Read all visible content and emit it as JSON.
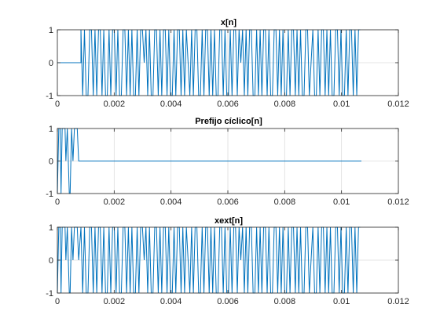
{
  "chart_data": [
    {
      "type": "line",
      "title": "x[n]",
      "xlabel": "",
      "ylabel": "",
      "xlim": [
        0,
        0.012
      ],
      "ylim": [
        -1,
        1
      ],
      "grid": true,
      "xticks": [
        "0",
        "0.002",
        "0.004",
        "0.006",
        "0.008",
        "0.01",
        "0.012"
      ],
      "xtick_values": [
        0,
        0.002,
        0.004,
        0.006,
        0.008,
        0.01,
        0.012
      ],
      "yticks": [
        "-1",
        "0",
        "1"
      ],
      "ytick_values": [
        -1,
        0,
        1
      ],
      "signal": {
        "zero_start": 0.0,
        "active_start": 0.00083,
        "active_end": 0.01066,
        "sample_step": 6.25e-05,
        "values": [
          1,
          -1,
          1,
          -1,
          -1,
          1,
          1,
          -1,
          1,
          -1,
          1,
          1,
          -1,
          1,
          -1,
          -1,
          1,
          -1,
          1,
          1,
          -1,
          1,
          -1,
          -1,
          1,
          1,
          -1,
          1,
          -1,
          1,
          -1,
          -1,
          1,
          -1,
          1,
          1,
          0,
          1,
          -1,
          1,
          -1,
          -1,
          1,
          1,
          -1,
          1,
          -1,
          1,
          1,
          -1,
          1,
          -1,
          -1,
          1,
          -1,
          1,
          1,
          -1,
          1,
          -1,
          1,
          0,
          -1,
          1,
          -1,
          1,
          1,
          -1,
          -1,
          1,
          -1,
          1,
          1,
          -1,
          1,
          -1,
          1,
          -1,
          -1,
          1,
          1,
          -1,
          1,
          -1,
          -1,
          1,
          -1,
          1,
          1,
          -1,
          1,
          0,
          1,
          -1,
          1,
          -1,
          1,
          1,
          -1,
          -1,
          1,
          -1,
          1,
          -1,
          1,
          1,
          -1,
          1,
          -1,
          -1,
          1,
          1,
          -1,
          1,
          -1,
          1,
          -1,
          -1,
          1,
          -1,
          1,
          1,
          -1,
          1,
          -1,
          1,
          -1,
          -1,
          1,
          1,
          -1,
          0,
          1,
          -1,
          -1,
          1,
          -1,
          1,
          1,
          -1,
          1,
          -1,
          1,
          -1,
          -1,
          1,
          1,
          -1,
          1,
          -1,
          -1,
          1,
          -1,
          1,
          1,
          -1,
          1,
          -1,
          1,
          1
        ]
      }
    },
    {
      "type": "line",
      "title": "Prefijo cíclico[n]",
      "xlabel": "",
      "ylabel": "",
      "xlim": [
        0,
        0.012
      ],
      "ylim": [
        -1,
        1
      ],
      "grid": true,
      "xticks": [
        "0",
        "0.002",
        "0.004",
        "0.006",
        "0.008",
        "0.01",
        "0.012"
      ],
      "xtick_values": [
        0,
        0.002,
        0.004,
        0.006,
        0.008,
        0.01,
        0.012
      ],
      "yticks": [
        "-1",
        "0",
        "1"
      ],
      "ytick_values": [
        -1,
        0,
        1
      ],
      "signal": {
        "points": [
          [
            0,
            -1
          ],
          [
            5e-05,
            1
          ],
          [
            0.0001,
            1
          ],
          [
            0.00013,
            -1
          ],
          [
            0.00017,
            1
          ],
          [
            0.00027,
            1
          ],
          [
            0.0003,
            0
          ],
          [
            0.00035,
            1
          ],
          [
            0.00042,
            -1
          ],
          [
            0.00045,
            -1
          ],
          [
            0.0005,
            1
          ],
          [
            0.00055,
            0
          ],
          [
            0.0006,
            1
          ],
          [
            0.0007,
            1
          ],
          [
            0.00075,
            0
          ],
          [
            0.0107,
            0
          ]
        ]
      }
    },
    {
      "type": "line",
      "title": "xext[n]",
      "xlabel": "",
      "ylabel": "",
      "xlim": [
        0,
        0.012
      ],
      "ylim": [
        -1,
        1
      ],
      "grid": true,
      "xticks": [
        "0",
        "0.002",
        "0.004",
        "0.006",
        "0.008",
        "0.01",
        "0.012"
      ],
      "xtick_values": [
        0,
        0.002,
        0.004,
        0.006,
        0.008,
        0.01,
        0.012
      ],
      "yticks": [
        "-1",
        "0",
        "1"
      ],
      "ytick_values": [
        -1,
        0,
        1
      ],
      "signal": {
        "prefix_points": [
          [
            0,
            -1
          ],
          [
            5e-05,
            1
          ],
          [
            0.0001,
            1
          ],
          [
            0.00013,
            -1
          ],
          [
            0.00017,
            1
          ],
          [
            0.00027,
            1
          ],
          [
            0.0003,
            0
          ],
          [
            0.00035,
            1
          ],
          [
            0.00042,
            -1
          ],
          [
            0.00045,
            -1
          ],
          [
            0.0005,
            1
          ],
          [
            0.00055,
            0
          ],
          [
            0.0006,
            1
          ],
          [
            0.0007,
            1
          ],
          [
            0.00075,
            0
          ]
        ],
        "active_start": 0.00083,
        "active_end": 0.01066,
        "sample_step": 6.25e-05,
        "values": [
          1,
          -1,
          1,
          -1,
          -1,
          1,
          1,
          -1,
          1,
          -1,
          1,
          1,
          -1,
          1,
          -1,
          -1,
          1,
          -1,
          1,
          1,
          -1,
          1,
          -1,
          -1,
          1,
          1,
          -1,
          1,
          -1,
          1,
          -1,
          -1,
          1,
          -1,
          1,
          1,
          0,
          1,
          -1,
          1,
          -1,
          -1,
          1,
          1,
          -1,
          1,
          -1,
          1,
          1,
          -1,
          1,
          -1,
          -1,
          1,
          -1,
          1,
          1,
          -1,
          1,
          -1,
          1,
          0,
          -1,
          1,
          -1,
          1,
          1,
          -1,
          -1,
          1,
          -1,
          1,
          1,
          -1,
          1,
          -1,
          1,
          -1,
          -1,
          1,
          1,
          -1,
          1,
          -1,
          -1,
          1,
          -1,
          1,
          1,
          -1,
          1,
          0,
          1,
          -1,
          1,
          -1,
          1,
          1,
          -1,
          -1,
          1,
          -1,
          1,
          -1,
          1,
          1,
          -1,
          1,
          -1,
          -1,
          1,
          1,
          -1,
          1,
          -1,
          1,
          -1,
          -1,
          1,
          -1,
          1,
          1,
          -1,
          1,
          -1,
          1,
          -1,
          -1,
          1,
          1,
          -1,
          0,
          1,
          -1,
          -1,
          1,
          -1,
          1,
          1,
          -1,
          1,
          -1,
          1,
          -1,
          -1,
          1,
          1,
          -1,
          1,
          -1,
          -1,
          1,
          -1,
          1,
          1,
          -1,
          1,
          -1,
          1,
          1
        ]
      }
    }
  ],
  "colors": {
    "line": "#0072BD",
    "axis": "#262626",
    "grid": "#dcdcdc",
    "background": "#ffffff"
  }
}
